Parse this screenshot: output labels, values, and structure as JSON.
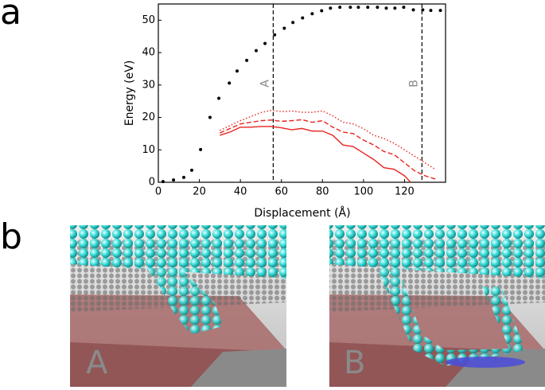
{
  "chart_data": {
    "type": "line",
    "xlabel": "Displacement (Å)",
    "ylabel": "Energy (eV)",
    "xlim": [
      0,
      140
    ],
    "ylim": [
      0,
      55
    ],
    "xticks": [
      0,
      20,
      40,
      60,
      80,
      100,
      120
    ],
    "yticks": [
      0,
      10,
      20,
      30,
      40,
      50
    ],
    "series": [
      {
        "color": "#000000",
        "style": "points",
        "x": [
          2.3,
          7.4,
          12.4,
          16.3,
          20.6,
          25.2,
          29.5,
          34.6,
          38.4,
          43.1,
          47.7,
          52.0,
          56.7,
          61.4,
          65.6,
          70.3,
          75.0,
          79.6,
          83.9,
          88.5,
          93.6,
          97.5,
          102.1,
          106.8,
          111.1,
          115.3,
          119.6,
          124.3,
          128.9,
          132.8,
          137.5
        ],
        "values": [
          0.2,
          0.7,
          1.5,
          3.7,
          10.1,
          20.0,
          25.9,
          30.6,
          34.3,
          37.6,
          40.6,
          42.8,
          45.5,
          47.5,
          49.3,
          50.7,
          52.0,
          52.9,
          53.7,
          54.0,
          54.0,
          54.0,
          54.0,
          54.0,
          53.7,
          53.7,
          54.0,
          53.2,
          53.2,
          53.0,
          53.0
        ]
      },
      {
        "color": "#e8231d",
        "style": "solid",
        "x": [
          30,
          35,
          40,
          45,
          50,
          55,
          60,
          65,
          70,
          75,
          80,
          85,
          90,
          95,
          100,
          105,
          110,
          115,
          120,
          123
        ],
        "values": [
          14.5,
          15.5,
          17,
          17,
          17.2,
          17.2,
          16.8,
          16.2,
          16.6,
          15.8,
          15.8,
          14.5,
          11.5,
          11,
          9,
          7,
          4.5,
          4,
          2,
          0
        ]
      },
      {
        "color": "#e8231d",
        "style": "dashed",
        "x": [
          30,
          40,
          50,
          55,
          60,
          65,
          70,
          75,
          80,
          85,
          90,
          95,
          100,
          105,
          110,
          115,
          120,
          125,
          130,
          135
        ],
        "values": [
          15.2,
          18,
          19,
          19.2,
          18.8,
          19,
          19.3,
          18.5,
          19,
          17,
          15.5,
          15,
          13,
          11.5,
          9.5,
          8.5,
          6,
          3.5,
          2,
          1
        ]
      },
      {
        "color": "#e8231d",
        "style": "dotted",
        "x": [
          30,
          40,
          50,
          55,
          60,
          65,
          70,
          75,
          80,
          85,
          90,
          95,
          100,
          105,
          110,
          115,
          120,
          125,
          130,
          135
        ],
        "values": [
          16,
          19,
          21.5,
          22.2,
          21.8,
          22,
          21.6,
          21.6,
          22,
          20.5,
          18.5,
          18,
          16.5,
          14.5,
          13.5,
          12,
          10,
          8,
          6,
          4
        ]
      }
    ],
    "annotations": [
      {
        "text": "A",
        "x": 56
      },
      {
        "text": "B",
        "x": 128.5
      }
    ]
  },
  "panel_labels": [
    "a",
    "b"
  ],
  "renderings": [
    "A",
    "B"
  ]
}
